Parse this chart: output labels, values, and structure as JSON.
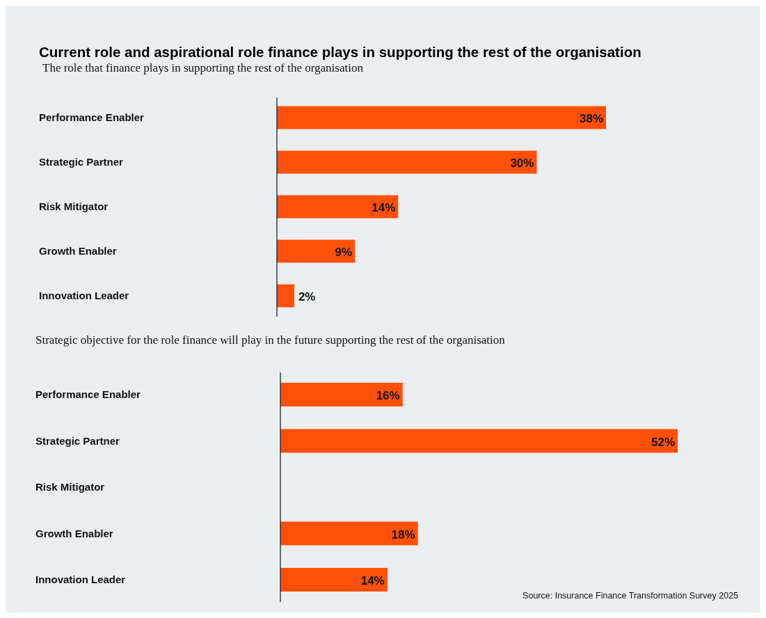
{
  "chart_data": [
    {
      "type": "bar",
      "orientation": "horizontal",
      "title": "Current role and aspirational role finance plays in supporting the rest of the organisation",
      "subtitle": "The role that finance plays in supporting the rest of the organisation",
      "categories": [
        "Performance Enabler",
        "Strategic Partner",
        "Risk Mitigator",
        "Growth Enabler",
        "Innovation Leader"
      ],
      "values": [
        38,
        30,
        14,
        9,
        2
      ],
      "value_labels": [
        "38%",
        "30%",
        "14%",
        "9%",
        "2%"
      ],
      "color": "#fe5009"
    },
    {
      "type": "bar",
      "orientation": "horizontal",
      "subtitle": "Strategic objective for the role finance will play in the future supporting the rest of the organisation",
      "categories": [
        "Performance Enabler",
        "Strategic Partner",
        "Risk Mitigator",
        "Growth Enabler",
        "Innovation Leader"
      ],
      "values": [
        16,
        52,
        null,
        18,
        14
      ],
      "value_labels": [
        "16%",
        "52%",
        null,
        "18%",
        "14%"
      ],
      "color": "#fe5009",
      "annotations": [
        "Source: Insurance Finance Transformation Survey 2025"
      ]
    }
  ]
}
